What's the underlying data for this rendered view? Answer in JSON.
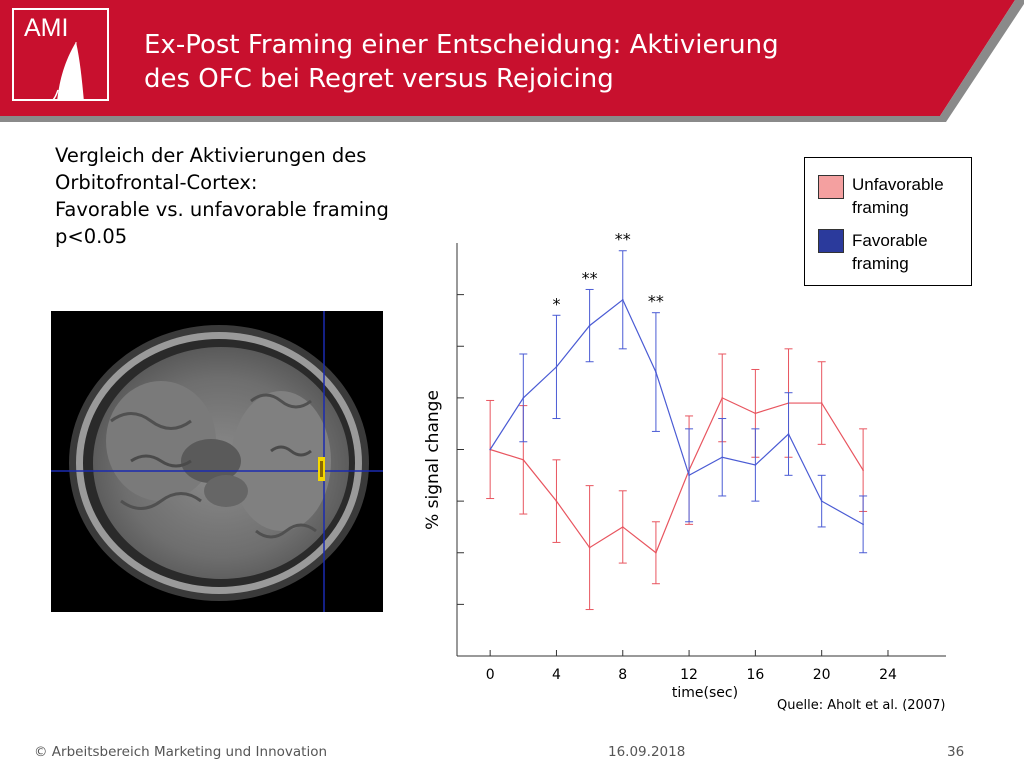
{
  "header": {
    "logo_text": "AMI",
    "title_line1": "Ex-Post Framing einer Entscheidung: Aktivierung",
    "title_line2": "des OFC bei Regret versus Rejoicing",
    "color": "#c8102e"
  },
  "description": {
    "line1": "Vergleich der Aktivierungen des",
    "line2": "Orbitofrontal-Cortex:",
    "line3": "Favorable vs. unfavorable framing",
    "line4": "p<0.05"
  },
  "legend": {
    "unfavorable_label_1": "Unfavorable",
    "unfavorable_label_2": "framing",
    "favorable_label_1": "Favorable",
    "favorable_label_2": "framing",
    "unfavorable_color": "#f4a0a0",
    "favorable_color": "#2b3a9c"
  },
  "chart_data": {
    "type": "line",
    "xlabel": "time(sec)",
    "ylabel": "% signal change",
    "x": [
      0,
      2,
      4,
      6,
      8,
      10,
      12,
      14,
      16,
      18,
      20,
      22,
      24
    ],
    "xticks": [
      "0",
      "4",
      "8",
      "12",
      "16",
      "20",
      "24"
    ],
    "xtick_values": [
      0,
      4,
      8,
      12,
      16,
      20,
      24
    ],
    "xlim": [
      -2,
      27.5
    ],
    "ylim": [
      0,
      8
    ],
    "yticks": [
      1,
      2,
      3,
      4,
      5,
      6,
      7
    ],
    "series": [
      {
        "name": "Unfavorable framing",
        "color": "#e8555f",
        "values": [
          4.0,
          3.8,
          3.0,
          2.1,
          2.5,
          2.0,
          3.6,
          5.0,
          4.7,
          4.9,
          4.9,
          3.6
        ],
        "x": [
          0,
          2,
          4,
          6,
          8,
          10,
          12,
          14,
          16,
          18,
          20,
          22.5
        ],
        "err": [
          0.95,
          1.05,
          0.8,
          1.2,
          0.7,
          0.6,
          1.05,
          0.85,
          0.85,
          1.05,
          0.8,
          0.8
        ]
      },
      {
        "name": "Favorable framing",
        "color": "#4a5bd4",
        "values": [
          4.0,
          5.0,
          5.6,
          6.4,
          6.9,
          5.5,
          3.5,
          3.85,
          3.7,
          4.3,
          3.0,
          2.55
        ],
        "x": [
          0,
          2,
          4,
          6,
          8,
          10,
          12,
          14,
          16,
          18,
          20,
          22.5
        ],
        "err": [
          0.0,
          0.85,
          1.0,
          0.7,
          0.95,
          1.15,
          0.9,
          0.75,
          0.7,
          0.8,
          0.5,
          0.55
        ]
      }
    ],
    "significance": [
      {
        "x": 4,
        "label": "*"
      },
      {
        "x": 6,
        "label": "**"
      },
      {
        "x": 8,
        "label": "**"
      },
      {
        "x": 10,
        "label": "**"
      }
    ]
  },
  "source": "Quelle: Aholt et al. (2007)",
  "footer": {
    "copyright": "© Arbeitsbereich Marketing und Innovation",
    "date": "16.09.2018",
    "page": "36"
  }
}
